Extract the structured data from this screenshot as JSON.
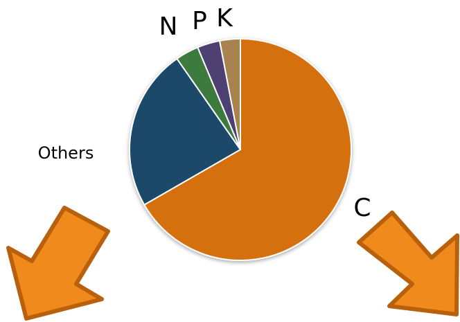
{
  "chart_data": {
    "type": "pie",
    "categories": [
      "C",
      "Others",
      "N",
      "P",
      "K"
    ],
    "values": [
      66.7,
      23.6,
      3.4,
      3.3,
      3.0
    ],
    "colors": [
      "#d4700a",
      "#1a4a6b",
      "#3e7a3e",
      "#4f3f73",
      "#a8824f"
    ]
  }
}
